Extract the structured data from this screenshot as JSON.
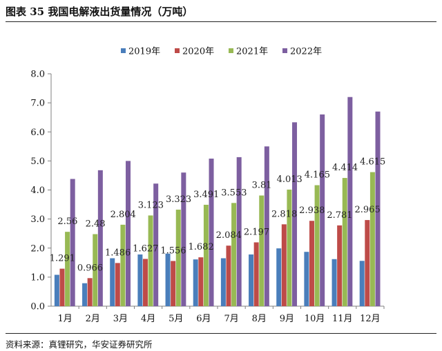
{
  "figure": {
    "title": "图表 35 我国电解液出货量情况（万吨）",
    "source": "资料来源：真锂研究，华安证券研究所"
  },
  "chart_data": {
    "type": "bar",
    "title": "我国电解液出货量情况（万吨）",
    "xlabel": "",
    "ylabel": "",
    "ylim": [
      0,
      8
    ],
    "yticks": [
      "0.0",
      "1.0",
      "2.0",
      "3.0",
      "4.0",
      "5.0",
      "6.0",
      "7.0",
      "8.0"
    ],
    "legend_position": "top-center",
    "categories": [
      "1月",
      "2月",
      "3月",
      "4月",
      "5月",
      "6月",
      "7月",
      "8月",
      "9月",
      "10月",
      "11月",
      "12月"
    ],
    "series": [
      {
        "name": "2019年",
        "color": "#4a7ebb",
        "values": [
          1.08,
          0.79,
          1.65,
          1.78,
          1.81,
          1.61,
          1.65,
          1.78,
          1.99,
          1.87,
          1.62,
          1.56
        ]
      },
      {
        "name": "2020年",
        "color": "#be4b48",
        "values": [
          1.291,
          0.966,
          1.486,
          1.627,
          1.556,
          1.682,
          2.084,
          2.197,
          2.818,
          2.938,
          2.781,
          2.965
        ],
        "labels": [
          "1.291",
          "0.966",
          "1.486",
          "1.627",
          "1.556",
          "1.682",
          "2.084",
          "2.197",
          "2.818",
          "2.938",
          "2.781",
          "2.965"
        ]
      },
      {
        "name": "2021年",
        "color": "#98b954",
        "values": [
          2.56,
          2.48,
          2.804,
          3.123,
          3.323,
          3.491,
          3.553,
          3.81,
          4.013,
          4.165,
          4.414,
          4.615
        ],
        "labels": [
          "2.56",
          "2.48",
          "2.804",
          "3.123",
          "3.323",
          "3.491",
          "3.553",
          "3.81",
          "4.013",
          "4.165",
          "4.414",
          "4.615"
        ]
      },
      {
        "name": "2022年",
        "color": "#7d5fa0",
        "values": [
          4.38,
          4.68,
          5.0,
          4.22,
          4.6,
          5.08,
          5.13,
          5.5,
          6.33,
          6.6,
          7.2,
          6.7
        ]
      }
    ]
  }
}
